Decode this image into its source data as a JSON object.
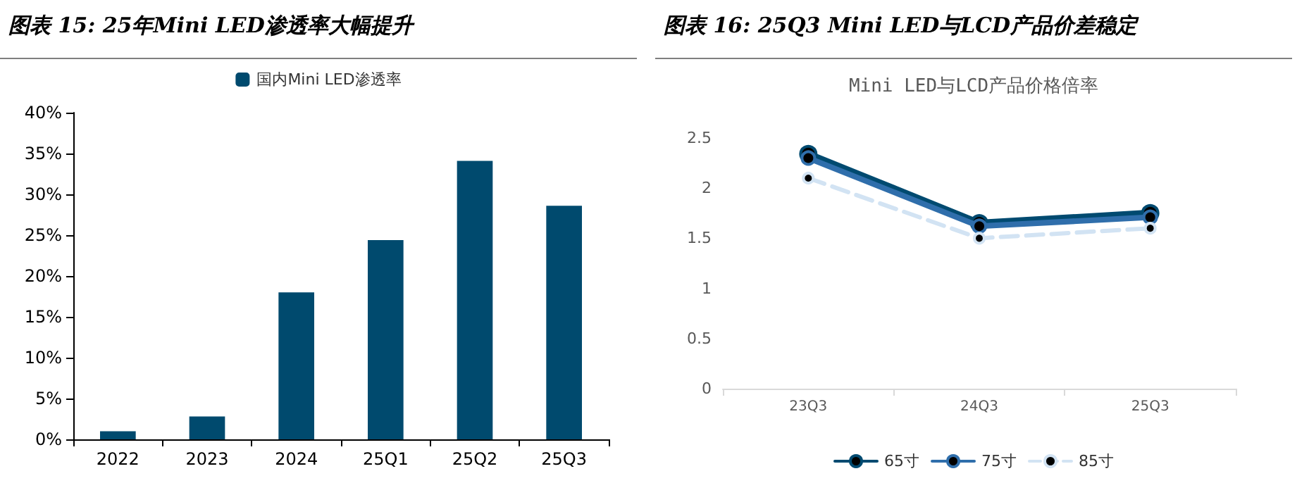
{
  "chart_data": [
    {
      "type": "bar",
      "title": "图表 15: 25年Mini LED渗透率大幅提升",
      "categories": [
        "2022",
        "2023",
        "2024",
        "25Q1",
        "25Q2",
        "25Q3"
      ],
      "series": [
        {
          "name": "国内Mini LED渗透率",
          "color": "#004a6e",
          "values": [
            1.0,
            2.8,
            18.0,
            24.4,
            34.1,
            28.6
          ]
        }
      ],
      "ylim": [
        0,
        40
      ],
      "yticks": [
        {
          "value": 0,
          "label": "0%"
        },
        {
          "value": 5,
          "label": "5%"
        },
        {
          "value": 10,
          "label": "10%"
        },
        {
          "value": 15,
          "label": "15%"
        },
        {
          "value": 20,
          "label": "20%"
        },
        {
          "value": 25,
          "label": "25%"
        },
        {
          "value": 30,
          "label": "30%"
        },
        {
          "value": 35,
          "label": "35%"
        },
        {
          "value": 40,
          "label": "40%"
        }
      ],
      "grid": false,
      "legend": "top"
    },
    {
      "type": "line",
      "title": "图表 16: 25Q3 Mini LED与LCD产品价差稳定",
      "subtitle": "Mini LED与LCD产品价格倍率",
      "categories": [
        "23Q3",
        "24Q3",
        "25Q3"
      ],
      "series": [
        {
          "name": "65寸",
          "color": "#004a70",
          "values": [
            2.34,
            1.65,
            1.75
          ],
          "line_style": "solid"
        },
        {
          "name": "75寸",
          "color": "#2f6eab",
          "values": [
            2.3,
            1.62,
            1.71
          ],
          "line_style": "solid"
        },
        {
          "name": "85寸",
          "color": "#d2e3f3",
          "values": [
            2.1,
            1.5,
            1.6
          ],
          "line_style": "dashed"
        }
      ],
      "ylim": [
        0,
        2.5
      ],
      "yticks": [
        0,
        {
          "value": 0.5,
          "label": "0.5"
        },
        1,
        {
          "value": 1.5,
          "label": "1.5"
        },
        2,
        {
          "value": 2.5,
          "label": "2.5"
        }
      ],
      "grid": false,
      "legend": "bottom",
      "marker": "circle"
    }
  ]
}
